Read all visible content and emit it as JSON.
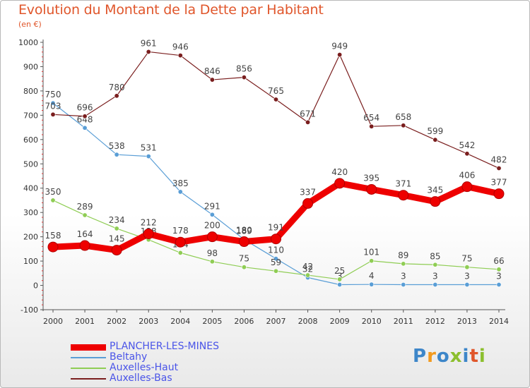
{
  "title": "Evolution du Montant de la Dette par Habitant",
  "unit": "(en €)",
  "logo": {
    "text": "Proxiti",
    "colors": [
      "#3d86c9",
      "#f39a1e",
      "#3d86c9",
      "#8cbf2e",
      "#3d86c9",
      "#e0562b",
      "#8cbf2e"
    ]
  },
  "chart_data": {
    "type": "line",
    "title": "Evolution du Montant de la Dette par Habitant",
    "ylabel": "(en €)",
    "xlabel": "",
    "ylim": [
      -100,
      1000
    ],
    "yticks": [
      -100,
      0,
      100,
      200,
      300,
      400,
      500,
      600,
      700,
      800,
      900,
      1000
    ],
    "x": [
      "2000",
      "2001",
      "2002",
      "2003",
      "2004",
      "2005",
      "2006",
      "2007",
      "2008",
      "2009",
      "2010",
      "2011",
      "2012",
      "2013",
      "2014"
    ],
    "grid": false,
    "legend_position": "bottom-left",
    "series": [
      {
        "name": "PLANCHER-LES-MINES",
        "color": "#ee0000",
        "emphasis": true,
        "values": [
          158,
          164,
          145,
          212,
          178,
          200,
          180,
          191,
          337,
          420,
          395,
          371,
          345,
          406,
          377
        ]
      },
      {
        "name": "Beltahy",
        "color": "#5a9ed6",
        "emphasis": false,
        "values": [
          750,
          648,
          538,
          531,
          385,
          291,
          189,
          110,
          32,
          3,
          4,
          3,
          3,
          3,
          3
        ]
      },
      {
        "name": "Auxelles-Haut",
        "color": "#8fcd54",
        "emphasis": false,
        "values": [
          350,
          289,
          234,
          188,
          134,
          98,
          75,
          59,
          42,
          25,
          101,
          89,
          85,
          75,
          66
        ]
      },
      {
        "name": "Auxelles-Bas",
        "color": "#7a1e1e",
        "emphasis": false,
        "values": [
          703,
          696,
          780,
          961,
          946,
          846,
          856,
          765,
          671,
          949,
          654,
          658,
          599,
          542,
          482
        ]
      }
    ]
  }
}
